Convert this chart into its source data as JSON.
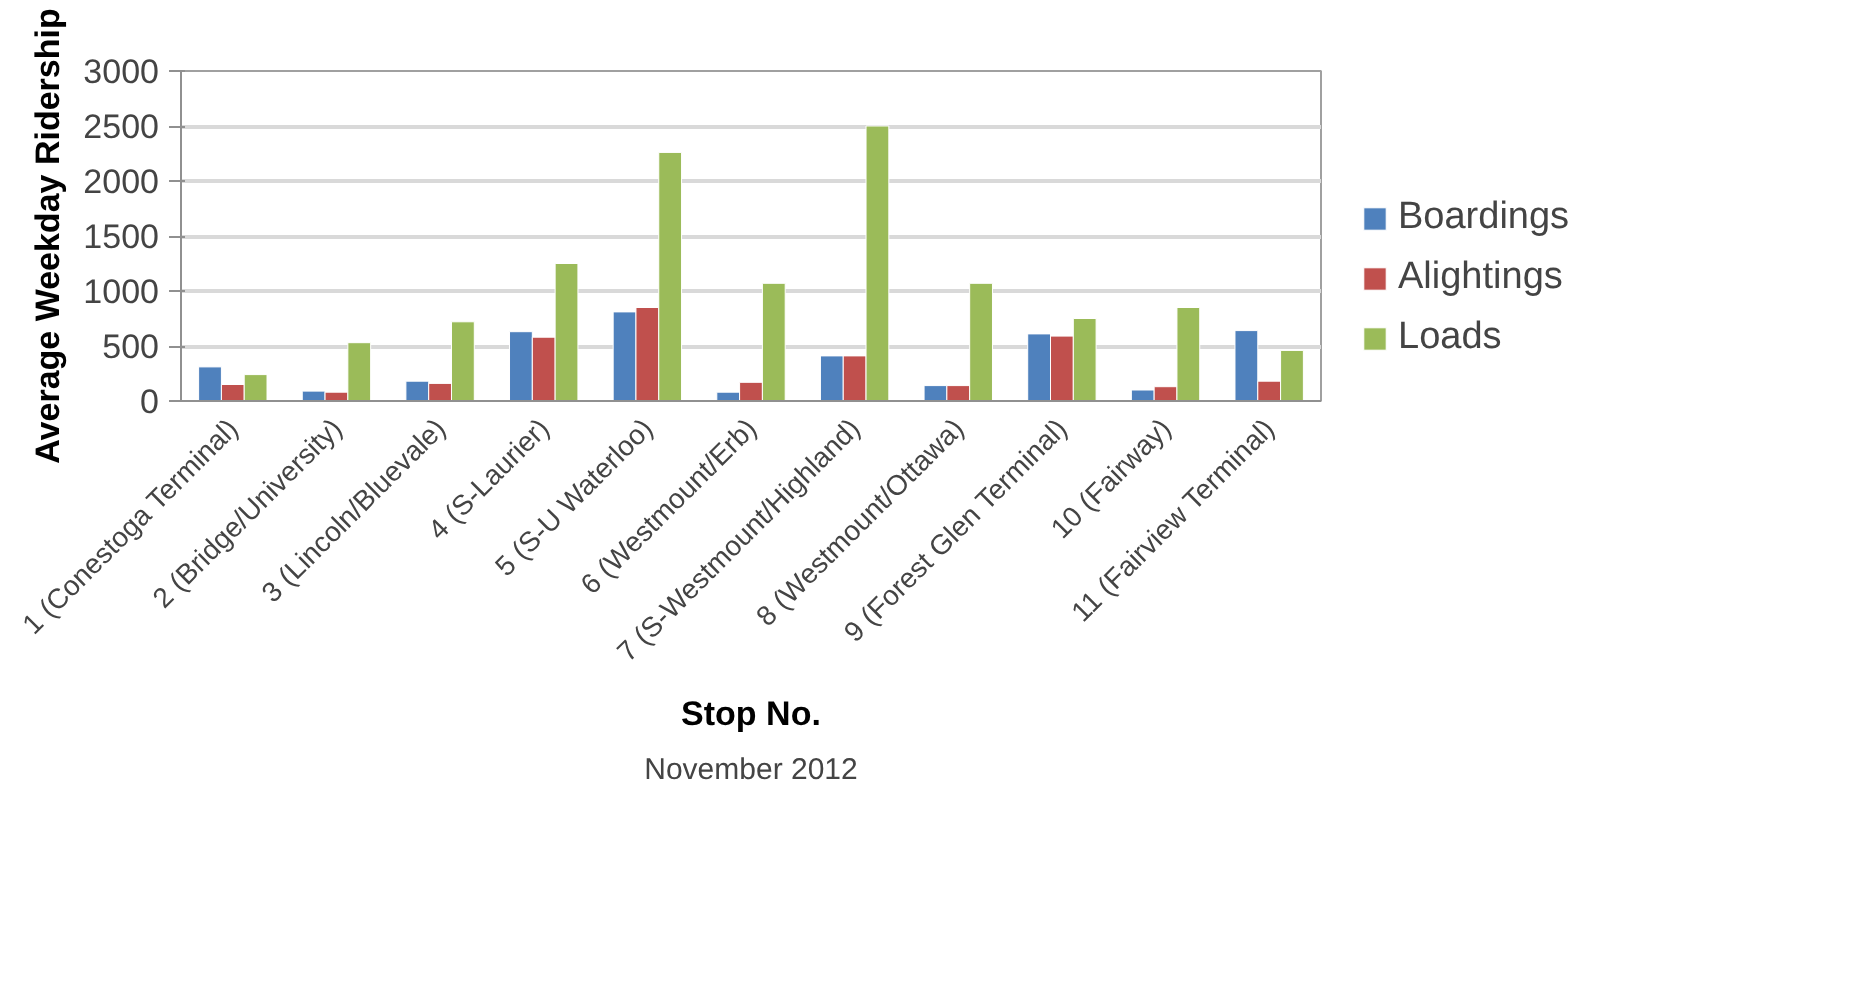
{
  "chart_data": {
    "type": "bar",
    "xlabel": "Stop No.",
    "ylabel": "Average Weekday Ridership",
    "annotations": [
      "November 2012"
    ],
    "categories": [
      "1 (Conestoga Terminal)",
      "2 (Bridge/University)",
      "3 (Lincoln/Bluevale)",
      "4 (S-Laurier)",
      "5 (S-U Waterloo)",
      "6 (Westmount/Erb)",
      "7 (S-Westmount/Highland)",
      "8 (Westmount/Ottawa)",
      "9 (Forest Glen Terminal)",
      "10 (Fairway)",
      "11 (Fairview Terminal)"
    ],
    "series": [
      {
        "name": "Boardings",
        "color": "#4f81bd",
        "values": [
          310,
          90,
          180,
          630,
          810,
          80,
          410,
          140,
          610,
          100,
          640
        ]
      },
      {
        "name": "Alightings",
        "color": "#c0504d",
        "values": [
          150,
          80,
          160,
          580,
          850,
          170,
          410,
          140,
          590,
          130,
          180
        ]
      },
      {
        "name": "Loads",
        "color": "#9bbb59",
        "values": [
          240,
          530,
          720,
          1250,
          2260,
          1070,
          2500,
          1070,
          750,
          850,
          460
        ]
      }
    ],
    "ylim": [
      0,
      3000
    ],
    "yticks": [
      0,
      500,
      1000,
      1500,
      2000,
      2500,
      3000
    ],
    "grid": "y",
    "legend": "bottom right"
  }
}
